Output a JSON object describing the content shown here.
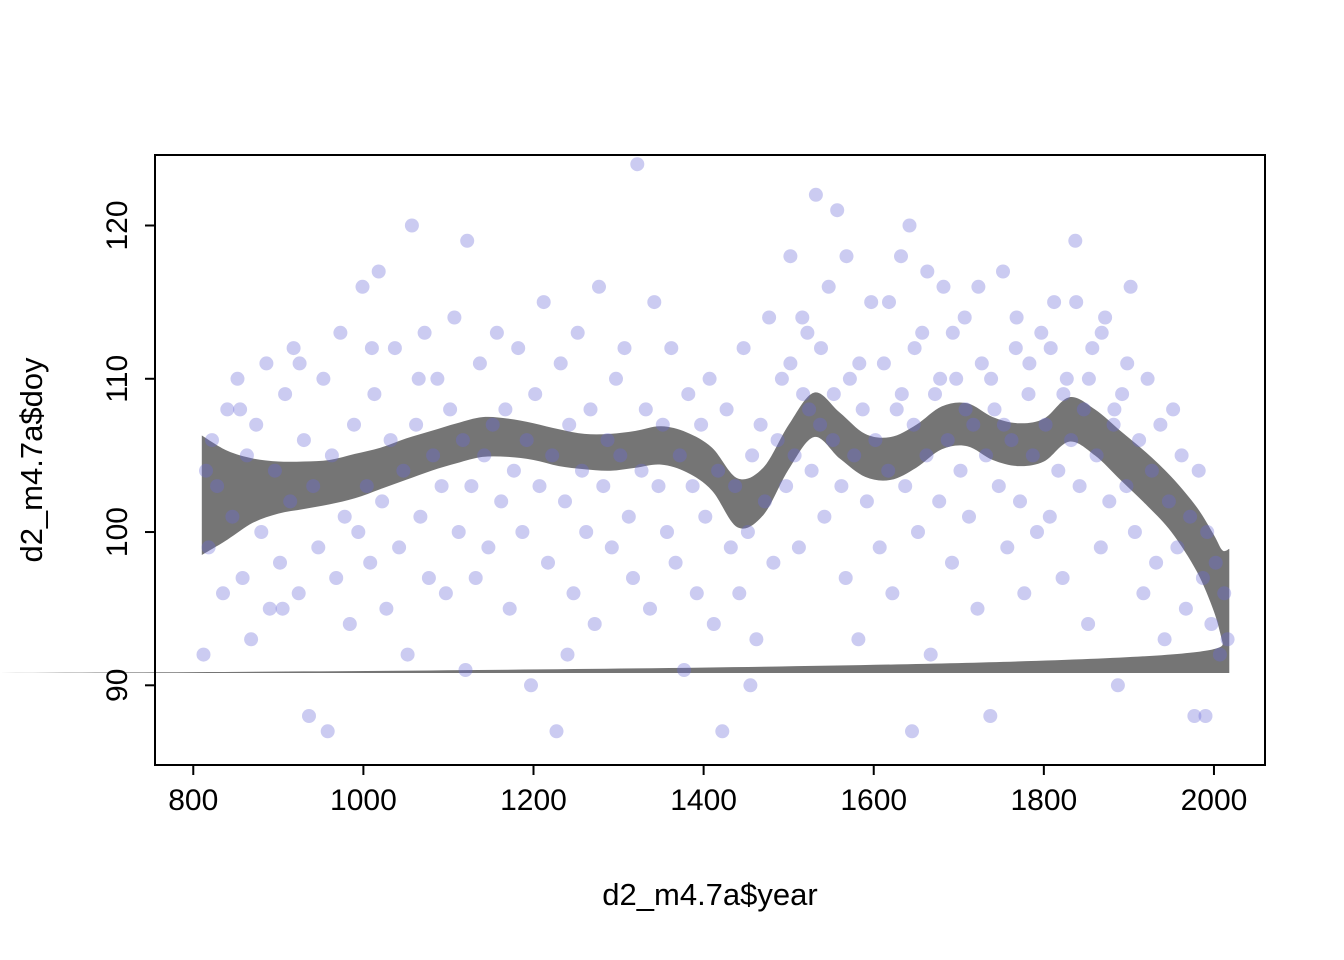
{
  "figure": {
    "background": "#ffffff"
  },
  "chart_data": {
    "type": "scatter",
    "title": "",
    "xlabel": "d2_m4.7a$year",
    "ylabel": "d2_m4.7a$doy",
    "xlim": [
      755,
      2060
    ],
    "ylim": [
      84.8,
      124.6
    ],
    "x_ticks": [
      800,
      1000,
      1200,
      1400,
      1600,
      1800,
      2000
    ],
    "y_ticks": [
      90,
      100,
      110,
      120
    ],
    "grid": false,
    "legend": "none",
    "point_color": "#6969d6",
    "point_opacity": 0.35,
    "point_radius": 7,
    "band_color": "#696969",
    "band_opacity": 0.92,
    "points": [
      [
        812,
        92
      ],
      [
        815,
        104
      ],
      [
        818,
        99
      ],
      [
        822,
        106
      ],
      [
        828,
        103
      ],
      [
        835,
        96
      ],
      [
        840,
        108
      ],
      [
        846,
        101
      ],
      [
        852,
        110
      ],
      [
        855,
        108
      ],
      [
        858,
        97
      ],
      [
        863,
        105
      ],
      [
        868,
        93
      ],
      [
        874,
        107
      ],
      [
        880,
        100
      ],
      [
        886,
        111
      ],
      [
        890,
        95
      ],
      [
        896,
        104
      ],
      [
        902,
        98
      ],
      [
        905,
        95
      ],
      [
        908,
        109
      ],
      [
        914,
        102
      ],
      [
        918,
        112
      ],
      [
        924,
        96
      ],
      [
        925,
        111
      ],
      [
        930,
        106
      ],
      [
        936,
        88
      ],
      [
        941,
        103
      ],
      [
        947,
        99
      ],
      [
        953,
        110
      ],
      [
        958,
        87
      ],
      [
        963,
        105
      ],
      [
        968,
        97
      ],
      [
        973,
        113
      ],
      [
        978,
        101
      ],
      [
        984,
        94
      ],
      [
        989,
        107
      ],
      [
        994,
        100
      ],
      [
        999,
        116
      ],
      [
        1004,
        103
      ],
      [
        1008,
        98
      ],
      [
        1010,
        112
      ],
      [
        1013,
        109
      ],
      [
        1018,
        117
      ],
      [
        1022,
        102
      ],
      [
        1027,
        95
      ],
      [
        1032,
        106
      ],
      [
        1037,
        112
      ],
      [
        1042,
        99
      ],
      [
        1047,
        104
      ],
      [
        1052,
        92
      ],
      [
        1057,
        120
      ],
      [
        1062,
        107
      ],
      [
        1065,
        110
      ],
      [
        1067,
        101
      ],
      [
        1072,
        113
      ],
      [
        1077,
        97
      ],
      [
        1082,
        105
      ],
      [
        1087,
        110
      ],
      [
        1092,
        103
      ],
      [
        1097,
        96
      ],
      [
        1102,
        108
      ],
      [
        1107,
        114
      ],
      [
        1112,
        100
      ],
      [
        1117,
        106
      ],
      [
        1120,
        91
      ],
      [
        1122,
        119
      ],
      [
        1127,
        103
      ],
      [
        1132,
        97
      ],
      [
        1137,
        111
      ],
      [
        1142,
        105
      ],
      [
        1147,
        99
      ],
      [
        1152,
        107
      ],
      [
        1157,
        113
      ],
      [
        1162,
        102
      ],
      [
        1167,
        108
      ],
      [
        1172,
        95
      ],
      [
        1177,
        104
      ],
      [
        1182,
        112
      ],
      [
        1187,
        100
      ],
      [
        1192,
        106
      ],
      [
        1197,
        90
      ],
      [
        1202,
        109
      ],
      [
        1207,
        103
      ],
      [
        1212,
        115
      ],
      [
        1217,
        98
      ],
      [
        1222,
        105
      ],
      [
        1227,
        87
      ],
      [
        1232,
        111
      ],
      [
        1237,
        102
      ],
      [
        1240,
        92
      ],
      [
        1242,
        107
      ],
      [
        1247,
        96
      ],
      [
        1252,
        113
      ],
      [
        1257,
        104
      ],
      [
        1262,
        100
      ],
      [
        1267,
        108
      ],
      [
        1272,
        94
      ],
      [
        1277,
        116
      ],
      [
        1282,
        103
      ],
      [
        1287,
        106
      ],
      [
        1292,
        99
      ],
      [
        1297,
        110
      ],
      [
        1302,
        105
      ],
      [
        1307,
        112
      ],
      [
        1312,
        101
      ],
      [
        1317,
        97
      ],
      [
        1322,
        124
      ],
      [
        1327,
        104
      ],
      [
        1332,
        108
      ],
      [
        1337,
        95
      ],
      [
        1342,
        115
      ],
      [
        1347,
        103
      ],
      [
        1352,
        107
      ],
      [
        1357,
        100
      ],
      [
        1362,
        112
      ],
      [
        1367,
        98
      ],
      [
        1372,
        105
      ],
      [
        1377,
        91
      ],
      [
        1382,
        109
      ],
      [
        1387,
        103
      ],
      [
        1392,
        96
      ],
      [
        1397,
        107
      ],
      [
        1402,
        101
      ],
      [
        1407,
        110
      ],
      [
        1412,
        94
      ],
      [
        1417,
        104
      ],
      [
        1422,
        87
      ],
      [
        1427,
        108
      ],
      [
        1432,
        99
      ],
      [
        1437,
        103
      ],
      [
        1442,
        96
      ],
      [
        1447,
        112
      ],
      [
        1452,
        100
      ],
      [
        1455,
        90
      ],
      [
        1457,
        105
      ],
      [
        1462,
        93
      ],
      [
        1467,
        107
      ],
      [
        1472,
        102
      ],
      [
        1477,
        114
      ],
      [
        1482,
        98
      ],
      [
        1487,
        106
      ],
      [
        1492,
        110
      ],
      [
        1497,
        103
      ],
      [
        1502,
        118
      ],
      [
        1502,
        111
      ],
      [
        1507,
        105
      ],
      [
        1512,
        99
      ],
      [
        1516,
        114
      ],
      [
        1517,
        109
      ],
      [
        1522,
        113
      ],
      [
        1524,
        108
      ],
      [
        1527,
        104
      ],
      [
        1532,
        122
      ],
      [
        1537,
        107
      ],
      [
        1538,
        112
      ],
      [
        1542,
        101
      ],
      [
        1547,
        116
      ],
      [
        1552,
        106
      ],
      [
        1553,
        109
      ],
      [
        1557,
        121
      ],
      [
        1562,
        103
      ],
      [
        1567,
        97
      ],
      [
        1568,
        118
      ],
      [
        1572,
        110
      ],
      [
        1577,
        105
      ],
      [
        1582,
        93
      ],
      [
        1583,
        111
      ],
      [
        1587,
        108
      ],
      [
        1592,
        102
      ],
      [
        1597,
        115
      ],
      [
        1602,
        106
      ],
      [
        1607,
        99
      ],
      [
        1612,
        111
      ],
      [
        1617,
        104
      ],
      [
        1618,
        115
      ],
      [
        1622,
        96
      ],
      [
        1627,
        108
      ],
      [
        1632,
        118
      ],
      [
        1633,
        109
      ],
      [
        1637,
        103
      ],
      [
        1642,
        120
      ],
      [
        1645,
        87
      ],
      [
        1647,
        107
      ],
      [
        1648,
        112
      ],
      [
        1652,
        100
      ],
      [
        1657,
        113
      ],
      [
        1662,
        105
      ],
      [
        1663,
        117
      ],
      [
        1667,
        92
      ],
      [
        1672,
        109
      ],
      [
        1677,
        102
      ],
      [
        1678,
        110
      ],
      [
        1682,
        116
      ],
      [
        1687,
        106
      ],
      [
        1692,
        98
      ],
      [
        1693,
        113
      ],
      [
        1697,
        110
      ],
      [
        1702,
        104
      ],
      [
        1707,
        114
      ],
      [
        1708,
        108
      ],
      [
        1712,
        101
      ],
      [
        1717,
        107
      ],
      [
        1722,
        95
      ],
      [
        1723,
        116
      ],
      [
        1727,
        111
      ],
      [
        1732,
        105
      ],
      [
        1737,
        88
      ],
      [
        1738,
        110
      ],
      [
        1742,
        108
      ],
      [
        1747,
        103
      ],
      [
        1752,
        117
      ],
      [
        1753,
        107
      ],
      [
        1757,
        99
      ],
      [
        1762,
        106
      ],
      [
        1767,
        112
      ],
      [
        1768,
        114
      ],
      [
        1772,
        102
      ],
      [
        1777,
        96
      ],
      [
        1782,
        109
      ],
      [
        1783,
        111
      ],
      [
        1787,
        105
      ],
      [
        1792,
        100
      ],
      [
        1797,
        113
      ],
      [
        1802,
        107
      ],
      [
        1807,
        101
      ],
      [
        1808,
        112
      ],
      [
        1812,
        115
      ],
      [
        1817,
        104
      ],
      [
        1822,
        97
      ],
      [
        1823,
        109
      ],
      [
        1827,
        110
      ],
      [
        1832,
        106
      ],
      [
        1837,
        119
      ],
      [
        1838,
        115
      ],
      [
        1842,
        103
      ],
      [
        1847,
        108
      ],
      [
        1852,
        94
      ],
      [
        1853,
        110
      ],
      [
        1857,
        112
      ],
      [
        1862,
        105
      ],
      [
        1867,
        99
      ],
      [
        1868,
        113
      ],
      [
        1872,
        114
      ],
      [
        1877,
        102
      ],
      [
        1882,
        107
      ],
      [
        1883,
        108
      ],
      [
        1887,
        90
      ],
      [
        1892,
        109
      ],
      [
        1897,
        103
      ],
      [
        1898,
        111
      ],
      [
        1902,
        116
      ],
      [
        1907,
        100
      ],
      [
        1912,
        106
      ],
      [
        1917,
        96
      ],
      [
        1922,
        110
      ],
      [
        1927,
        104
      ],
      [
        1932,
        98
      ],
      [
        1937,
        107
      ],
      [
        1942,
        93
      ],
      [
        1947,
        102
      ],
      [
        1952,
        108
      ],
      [
        1957,
        99
      ],
      [
        1962,
        105
      ],
      [
        1967,
        95
      ],
      [
        1972,
        101
      ],
      [
        1977,
        88
      ],
      [
        1982,
        104
      ],
      [
        1987,
        97
      ],
      [
        1990,
        88
      ],
      [
        1992,
        100
      ],
      [
        1997,
        94
      ],
      [
        2002,
        98
      ],
      [
        2007,
        92
      ],
      [
        2012,
        96
      ],
      [
        2016,
        93
      ]
    ],
    "smoother": {
      "x": [
        810,
        840,
        870,
        900,
        930,
        960,
        990,
        1020,
        1050,
        1080,
        1110,
        1140,
        1170,
        1200,
        1230,
        1260,
        1290,
        1320,
        1350,
        1380,
        1410,
        1440,
        1470,
        1500,
        1530,
        1560,
        1590,
        1620,
        1650,
        1680,
        1710,
        1740,
        1770,
        1800,
        1830,
        1860,
        1890,
        1920,
        1950,
        1980,
        2000,
        2010,
        2018
      ],
      "upper": [
        106.3,
        105.3,
        104.8,
        104.6,
        104.6,
        104.7,
        105.1,
        105.5,
        106.1,
        106.6,
        107.1,
        107.5,
        107.4,
        107.1,
        106.7,
        106.4,
        106.4,
        106.6,
        106.9,
        106.5,
        105.5,
        103.5,
        104.2,
        107.0,
        109.1,
        107.8,
        106.4,
        106.2,
        107.0,
        108.2,
        108.4,
        107.5,
        107.1,
        107.4,
        108.8,
        108.0,
        106.6,
        105.2,
        103.6,
        101.6,
        99.8,
        98.8,
        98.9
      ],
      "lower": [
        98.5,
        99.5,
        100.6,
        101.2,
        101.5,
        101.8,
        102.2,
        102.8,
        103.4,
        104.0,
        104.5,
        104.9,
        104.9,
        104.7,
        104.3,
        104.1,
        104.0,
        104.2,
        104.4,
        103.9,
        102.7,
        100.3,
        101.1,
        104.1,
        106.2,
        104.8,
        103.6,
        103.4,
        104.2,
        105.4,
        105.6,
        104.7,
        104.3,
        104.6,
        105.9,
        105.0,
        103.4,
        101.8,
        100.0,
        97.4,
        94.8,
        92.8,
        90.8
      ]
    }
  }
}
